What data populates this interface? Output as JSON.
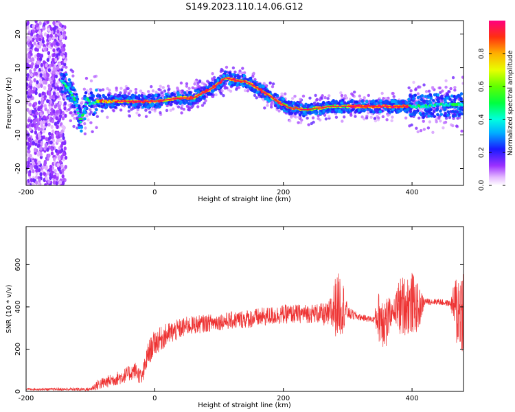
{
  "title": "S149.2023.110.14.06.G12",
  "chart_data": [
    {
      "type": "heatmap",
      "xlabel": "Height of straight line (km)",
      "ylabel": "Frequency (Hz)",
      "xlim": [
        -200,
        480
      ],
      "ylim": [
        -25,
        24
      ],
      "xticks": [
        "-200",
        "0",
        "200",
        "400"
      ],
      "yticks": [
        "-20",
        "-10",
        "0",
        "10",
        "20"
      ],
      "colorbar": {
        "label": "Normalized spectral amplitude",
        "ticks": [
          "0.0",
          "0.2",
          "0.4",
          "0.6",
          "0.8"
        ],
        "range": [
          0,
          1
        ]
      },
      "ridge": {
        "x": [
          -145,
          -135,
          -125,
          -115,
          -110,
          -105,
          -100,
          -90,
          -80,
          -60,
          -40,
          -20,
          0,
          20,
          40,
          60,
          70,
          80,
          90,
          100,
          110,
          120,
          130,
          140,
          150,
          160,
          170,
          180,
          190,
          200,
          210,
          220,
          230,
          240,
          250,
          260,
          270,
          280,
          300,
          320,
          340,
          360,
          380,
          400,
          420,
          440,
          460,
          480
        ],
        "y": [
          6,
          4,
          1,
          -6,
          -3,
          1,
          -1,
          0,
          0,
          0,
          0,
          0,
          0,
          0.5,
          1,
          1,
          2,
          3,
          4,
          5.5,
          7,
          6.5,
          6,
          6,
          5,
          4,
          2.5,
          1.5,
          0,
          -1,
          -2,
          -2,
          -2.5,
          -2.5,
          -2,
          -2,
          -1.5,
          -1.5,
          -1.5,
          -1.5,
          -1.5,
          -1.5,
          -1.5,
          -1.5,
          -1.5,
          -1,
          -1,
          -1
        ]
      }
    },
    {
      "type": "line",
      "xlabel": "Height of straight line (km)",
      "ylabel": "SNR (10 * v/v)",
      "xlim": [
        -200,
        480
      ],
      "ylim": [
        0,
        780
      ],
      "xticks": [
        "-200",
        "0",
        "200",
        "400"
      ],
      "yticks": [
        "0",
        "200",
        "400",
        "600"
      ],
      "color": "#ee3333",
      "envelope": {
        "x": [
          -200,
          -100,
          -90,
          -50,
          -30,
          -20,
          -10,
          0,
          20,
          50,
          100,
          150,
          200,
          250,
          270,
          280,
          290,
          300,
          320,
          340,
          350,
          360,
          370,
          380,
          400,
          410,
          420,
          440,
          460,
          470,
          480
        ],
        "base": [
          10,
          10,
          30,
          70,
          100,
          60,
          180,
          230,
          270,
          310,
          330,
          345,
          365,
          370,
          360,
          400,
          420,
          370,
          350,
          340,
          360,
          330,
          380,
          400,
          420,
          390,
          425,
          425,
          415,
          390,
          400
        ],
        "noise": [
          5,
          8,
          25,
          35,
          40,
          40,
          60,
          60,
          55,
          45,
          40,
          45,
          45,
          45,
          60,
          140,
          160,
          30,
          15,
          15,
          140,
          140,
          30,
          140,
          150,
          110,
          15,
          15,
          15,
          200,
          220
        ]
      }
    }
  ]
}
